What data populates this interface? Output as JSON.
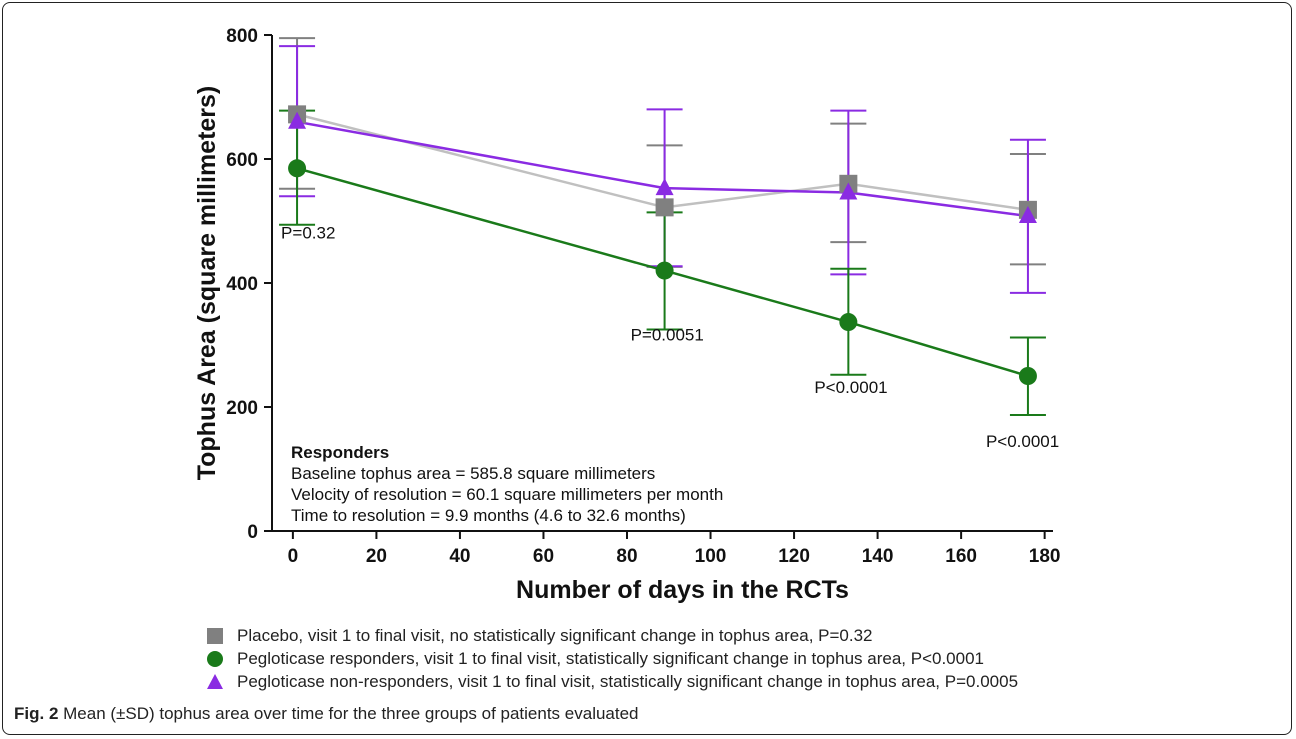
{
  "chart_data": {
    "type": "line",
    "xlabel": "Number of days in the RCTs",
    "ylabel": "Tophus Area (square millimeters)",
    "xlim": [
      -5,
      182
    ],
    "ylim": [
      0,
      800
    ],
    "xticks": [
      0,
      20,
      40,
      60,
      80,
      100,
      120,
      140,
      160,
      180
    ],
    "yticks": [
      0,
      200,
      400,
      600,
      800
    ],
    "series": [
      {
        "name": "Placebo, visit 1 to final visit, no statistically significant change in tophus area, P=0.32",
        "marker": "square",
        "color": "#808080",
        "line_color": "#c0c0c0",
        "x": [
          1,
          89,
          133,
          176
        ],
        "y": [
          672,
          522,
          560,
          518
        ],
        "sd_upper": [
          795,
          622,
          657,
          608
        ],
        "sd_lower": [
          552,
          426,
          466,
          430
        ]
      },
      {
        "name": "Peglotisase non-responders, visit 1 to final visit, statistically significant change in tophus area, P=0.0005",
        "marker": "triangle",
        "color": "#8a2be2",
        "line_color": "#8a2be2",
        "x": [
          1,
          89,
          133,
          176
        ],
        "y": [
          660,
          553,
          546,
          508
        ],
        "sd_upper": [
          782,
          680,
          678,
          631
        ],
        "sd_lower": [
          540,
          427,
          414,
          384
        ]
      },
      {
        "name": "Peglotisase responders, visit 1 to final visit, statistically significant change in tophus area, P<0.0001",
        "marker": "circle",
        "color": "#1a7a1a",
        "line_color": "#1a7a1a",
        "x": [
          1,
          89,
          133,
          176
        ],
        "y": [
          585,
          420,
          337,
          250
        ],
        "sd_upper": [
          678,
          514,
          423,
          312
        ],
        "sd_lower": [
          494,
          325,
          252,
          187
        ]
      }
    ],
    "point_labels": [
      {
        "x": 1,
        "y": 585,
        "text": "P=0.32"
      },
      {
        "x": 89,
        "y": 420,
        "text": "P=0.0051"
      },
      {
        "x": 133,
        "y": 337,
        "text": "P<0.0001"
      },
      {
        "x": 176,
        "y": 250,
        "text": "P<0.0001"
      }
    ]
  },
  "annotation": {
    "heading": "Responders",
    "line1": "Baseline tophus area = 585.8 square millimeters",
    "line2": "Velocity of resolution = 60.1 square millimeters per month",
    "line3": "Time to resolution = 9.9 months (4.6 to 32.6 months)"
  },
  "legend": [
    {
      "label": "Placebo, visit 1 to final visit, no statistically significant change in tophus area, P=0.32",
      "marker": "square",
      "color": "#808080"
    },
    {
      "label": "Pegloticase responders, visit 1 to final visit, statistically significant change in tophus area, P<0.0001",
      "marker": "circle",
      "color": "#1a7a1a"
    },
    {
      "label": "Pegloticase non-responders, visit 1 to final visit, statistically significant change in tophus area, P=0.0005",
      "marker": "triangle",
      "color": "#8a2be2"
    }
  ],
  "caption": {
    "label": "Fig. 2",
    "text": "Mean (±SD) tophus area over time for the three groups of patients evaluated"
  }
}
